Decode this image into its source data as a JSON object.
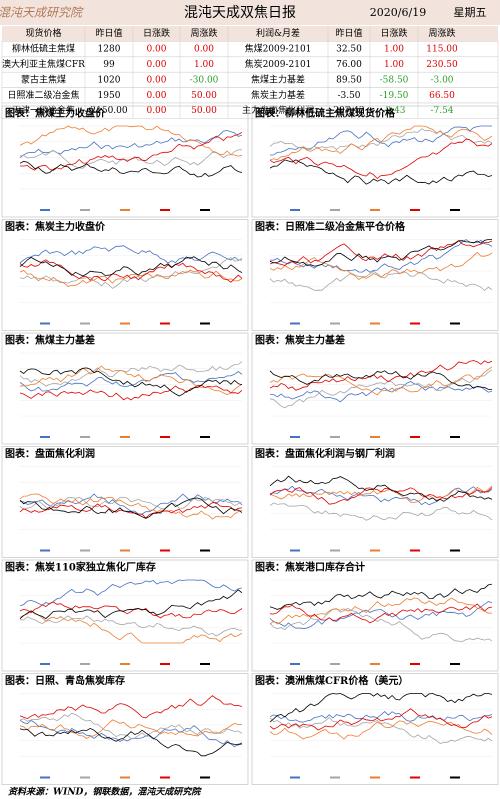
{
  "header": {
    "logo": "混沌天成研究院",
    "title": "混沌天成双焦日报",
    "date": "2020/6/19",
    "weekday": "星期五"
  },
  "table": {
    "columns": [
      "现货价格",
      "昨日值",
      "日涨跌",
      "周涨跌",
      "利润&月差",
      "昨日值",
      "日涨跌",
      "周涨跌"
    ],
    "rows": [
      [
        "柳林低硫主焦煤",
        "1280",
        "0.00",
        "0.00",
        "焦煤2009-2101",
        "32.50",
        "1.00",
        "115.00"
      ],
      [
        "澳大利亚主焦煤CFR",
        "99",
        "0.00",
        "1.00",
        "焦炭2009-2101",
        "76.00",
        "1.00",
        "230.50"
      ],
      [
        "蒙古主焦煤",
        "1020",
        "0.00",
        "-30.00",
        "焦煤主力基差",
        "89.50",
        "-58.50",
        "-3.00"
      ],
      [
        "日照准二级冶金焦",
        "1950",
        "0.00",
        "50.00",
        "焦炭主力基差",
        "-3.50",
        "-19.50",
        "66.50"
      ],
      [
        "天津一级冶金焦",
        "2150.00",
        "0.00",
        "50.00",
        "主力盘面焦化利润",
        "207.42",
        "-3.43",
        "-7.54"
      ]
    ]
  },
  "panels": [
    "图表：焦煤主力收盘价",
    "图表：柳林低硫主焦煤现货价格",
    "图表：焦炭主力收盘价",
    "图表：日照准二级冶金焦平仓价格",
    "图表：焦煤主力基差",
    "图表：焦炭主力基差",
    "图表：盘面焦化利润",
    "图表：盘面焦化利润与钢厂利润",
    "图表：焦炭110家独立焦化厂库存",
    "图表：焦炭港口库存合计",
    "图表：日照、青岛焦炭库存",
    "图表：澳洲焦煤CFR价格（美元）"
  ],
  "footer": "资料来源：WIND，钢联数据，混沌天成研究院"
}
